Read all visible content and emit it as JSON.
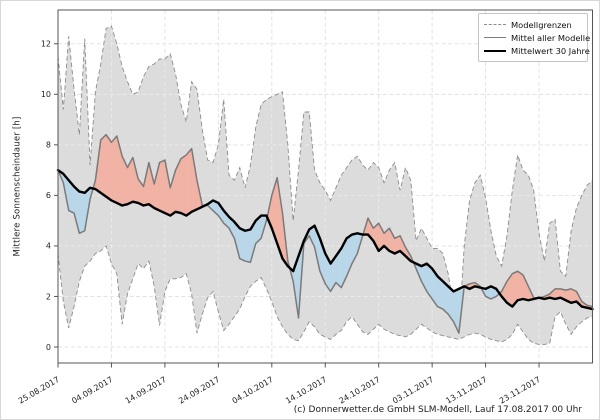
{
  "figure": {
    "footer": "(c) Donnerwetter.de GmbH SLM-Modell, Lauf 17.08.2017 00 Uhr"
  },
  "legend": {
    "position": "upper-right",
    "entries": [
      {
        "label": "Modellgrenzen",
        "style": "dashed-gray"
      },
      {
        "label": "Mittel aller Modelle",
        "style": "solid-gray"
      },
      {
        "label": "Mittelwert 30 Jahre",
        "style": "solid-black-thick"
      }
    ]
  },
  "chart_data": {
    "type": "line",
    "title": "",
    "xlabel": "",
    "ylabel": "Mittlere Sonnenscheindauer [h]",
    "ylim": [
      -0.65,
      13.35
    ],
    "y_ticks": [
      0,
      2,
      4,
      6,
      8,
      10,
      12
    ],
    "grid": true,
    "start_date": "25.08.2017",
    "end_date": "03.12.2017",
    "x_tick_labels": [
      "25.08.2017",
      "04.09.2017",
      "14.09.2017",
      "24.09.2017",
      "04.10.2017",
      "14.10.2017",
      "24.10.2017",
      "03.11.2017",
      "13.11.2017",
      "23.11.2017"
    ],
    "x_tick_days": [
      0,
      10,
      20,
      30,
      40,
      50,
      60,
      70,
      80,
      90
    ],
    "colors": {
      "envelope_fill": "#dcdcdc",
      "envelope_edge": "#8c8c8c",
      "above_normal_fill": "#f1b3a5",
      "below_normal_fill": "#b9d7e8",
      "model_mean_line": "#7a7a7a",
      "climatology_line": "#000000",
      "grid": "#c9c9c9",
      "axis": "#555555",
      "tick_label": "#222222"
    },
    "series": [
      {
        "name": "Modellgrenzen (Obergrenze)",
        "role": "upper_bound",
        "values": [
          11.5,
          9.4,
          12.3,
          10.2,
          8.4,
          12.2,
          7.2,
          10.1,
          11.2,
          12.6,
          12.7,
          12.0,
          11.1,
          10.5,
          10.0,
          10.1,
          10.7,
          11.1,
          11.2,
          11.4,
          11.4,
          11.6,
          10.8,
          9.6,
          8.9,
          10.5,
          10.2,
          8.6,
          7.4,
          7.3,
          8.0,
          9.8,
          6.8,
          6.6,
          7.1,
          6.3,
          7.2,
          8.7,
          9.6,
          9.8,
          9.9,
          10.0,
          10.1,
          8.0,
          5.0,
          7.0,
          9.3,
          9.3,
          7.0,
          6.5,
          6.2,
          5.8,
          6.3,
          6.8,
          7.1,
          7.4,
          7.55,
          7.2,
          7.0,
          7.3,
          7.1,
          6.5,
          7.0,
          7.3,
          6.2,
          7.1,
          6.6,
          4.2,
          4.7,
          4.3,
          3.9,
          3.9,
          3.7,
          2.9,
          1.6,
          0.6,
          4.0,
          5.8,
          6.5,
          6.8,
          5.9,
          4.6,
          3.6,
          3.2,
          4.4,
          6.2,
          7.6,
          7.0,
          6.8,
          6.2,
          4.5,
          3.4,
          4.9,
          5.05,
          3.0,
          2.8,
          4.6,
          5.5,
          6.0,
          6.4,
          6.6
        ]
      },
      {
        "name": "Modellgrenzen (Untergrenze)",
        "role": "lower_bound",
        "values": [
          3.7,
          1.8,
          0.75,
          1.6,
          2.6,
          3.2,
          3.4,
          3.7,
          3.8,
          4.0,
          3.3,
          2.9,
          0.9,
          2.1,
          2.7,
          3.3,
          3.1,
          3.4,
          2.4,
          0.85,
          2.2,
          2.7,
          2.7,
          2.75,
          2.9,
          2.1,
          0.55,
          1.3,
          1.95,
          2.2,
          1.4,
          0.65,
          0.9,
          1.2,
          1.5,
          2.0,
          2.4,
          2.6,
          2.75,
          2.3,
          1.8,
          1.2,
          0.8,
          0.5,
          0.3,
          0.25,
          0.6,
          1.0,
          0.8,
          0.5,
          0.4,
          0.3,
          0.5,
          0.65,
          1.0,
          1.2,
          0.9,
          0.6,
          0.5,
          0.7,
          0.9,
          0.7,
          0.6,
          0.5,
          0.45,
          0.4,
          0.5,
          0.7,
          0.9,
          0.75,
          0.6,
          0.5,
          0.45,
          0.4,
          0.35,
          0.3,
          0.4,
          0.5,
          0.55,
          0.5,
          0.4,
          0.3,
          0.25,
          0.2,
          0.3,
          0.5,
          0.9,
          0.6,
          0.3,
          0.15,
          0.1,
          0.1,
          0.15,
          1.2,
          1.4,
          0.9,
          0.5,
          0.8,
          1.0,
          1.15,
          1.2
        ]
      },
      {
        "name": "Mittel aller Modelle",
        "role": "model_mean",
        "values": [
          7.0,
          6.5,
          5.4,
          5.3,
          4.5,
          4.6,
          5.85,
          6.6,
          8.2,
          8.4,
          8.1,
          8.35,
          7.55,
          7.1,
          7.5,
          6.65,
          6.35,
          7.3,
          6.45,
          7.3,
          7.4,
          6.3,
          7.0,
          7.45,
          7.6,
          7.85,
          6.6,
          5.6,
          5.6,
          5.4,
          5.2,
          4.9,
          4.7,
          4.3,
          3.5,
          3.4,
          3.35,
          4.1,
          4.3,
          5.0,
          6.0,
          6.7,
          5.3,
          3.4,
          2.6,
          1.15,
          4.1,
          4.4,
          3.95,
          3.0,
          2.5,
          2.2,
          2.55,
          2.35,
          2.8,
          3.3,
          3.7,
          4.4,
          5.1,
          4.7,
          4.9,
          4.5,
          4.7,
          4.3,
          4.4,
          3.95,
          3.6,
          3.1,
          2.6,
          2.2,
          1.9,
          1.6,
          1.5,
          1.3,
          1.0,
          0.55,
          2.4,
          2.5,
          2.55,
          2.4,
          2.0,
          1.9,
          2.0,
          2.2,
          2.6,
          2.9,
          3.0,
          2.85,
          2.4,
          1.95,
          1.95,
          2.0,
          2.1,
          2.3,
          2.3,
          2.25,
          2.3,
          2.2,
          1.8,
          1.65,
          1.6
        ]
      },
      {
        "name": "Mittelwert 30 Jahre",
        "role": "climatology_mean",
        "values": [
          7.0,
          6.85,
          6.6,
          6.35,
          6.15,
          6.1,
          6.3,
          6.25,
          6.1,
          5.95,
          5.8,
          5.7,
          5.6,
          5.65,
          5.75,
          5.7,
          5.6,
          5.65,
          5.5,
          5.4,
          5.3,
          5.2,
          5.35,
          5.3,
          5.2,
          5.35,
          5.45,
          5.55,
          5.65,
          5.8,
          5.7,
          5.4,
          5.15,
          4.95,
          4.7,
          4.6,
          4.65,
          5.0,
          5.2,
          5.2,
          4.7,
          4.1,
          3.5,
          3.2,
          3.0,
          3.6,
          4.2,
          4.65,
          4.8,
          4.3,
          3.7,
          3.3,
          3.6,
          3.9,
          4.3,
          4.45,
          4.5,
          4.45,
          4.45,
          4.2,
          3.8,
          4.0,
          3.8,
          3.7,
          3.8,
          3.6,
          3.4,
          3.3,
          3.2,
          3.3,
          3.1,
          2.8,
          2.6,
          2.4,
          2.2,
          2.3,
          2.4,
          2.3,
          2.4,
          2.35,
          2.3,
          2.4,
          2.3,
          2.0,
          1.75,
          1.6,
          1.85,
          1.9,
          1.85,
          1.9,
          1.95,
          1.9,
          1.95,
          1.9,
          1.95,
          1.85,
          1.75,
          1.8,
          1.6,
          1.55,
          1.5
        ]
      }
    ]
  }
}
